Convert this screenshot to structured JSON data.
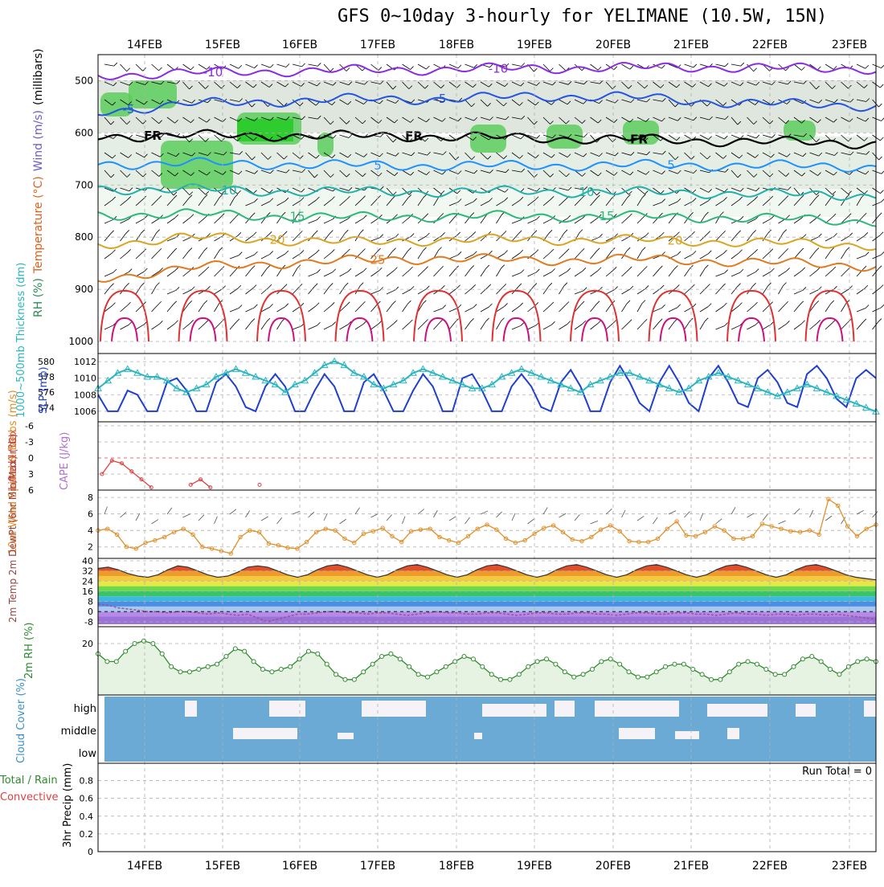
{
  "title": "GFS 0~10day 3-hourly for YELIMANE (10.5W, 15N)",
  "dates": [
    "14FEB",
    "15FEB",
    "16FEB",
    "17FEB",
    "18FEB",
    "19FEB",
    "20FEB",
    "21FEB",
    "22FEB",
    "23FEB"
  ],
  "colors": {
    "grid": "#b0b0b0",
    "axis": "#000000"
  },
  "chart_data": [
    {
      "type": "heatmap",
      "title": "Temperature / Wind / RH profile",
      "ylabel_parts": [
        "RH (%)",
        "Temperature (°C)",
        "Wind (m/s)",
        "(millibars)"
      ],
      "ylabel_colors": [
        "#2e8b57",
        "#e0601a",
        "#6a5acd",
        "#000000"
      ],
      "y_ticks": [
        500,
        600,
        700,
        800,
        900,
        1000
      ],
      "ylim": [
        450,
        1000
      ],
      "temperature_contours": [
        {
          "label": "-10",
          "color": "#8a2be2",
          "levels": [
            490,
            485,
            482,
            480,
            478,
            476,
            475,
            474,
            476,
            477
          ]
        },
        {
          "label": "-5",
          "color": "#2455e0",
          "levels": [
            560,
            545,
            540,
            535,
            535,
            530,
            530,
            540,
            545,
            548
          ]
        },
        {
          "label": "FR",
          "color": "#000000",
          "levels": [
            607,
            605,
            605,
            606,
            607,
            610,
            612,
            615,
            618,
            620
          ]
        },
        {
          "label": "5",
          "color": "#1e90ff",
          "levels": [
            660,
            658,
            660,
            662,
            663,
            663,
            662,
            662,
            663,
            665
          ]
        },
        {
          "label": "10",
          "color": "#20b2aa",
          "levels": [
            708,
            708,
            712,
            713,
            713,
            712,
            714,
            715,
            718,
            720
          ]
        },
        {
          "label": "15",
          "color": "#2db87a",
          "levels": [
            758,
            755,
            760,
            762,
            760,
            760,
            760,
            762,
            765,
            770
          ]
        },
        {
          "label": "20",
          "color": "#daa520",
          "levels": [
            815,
            800,
            805,
            810,
            805,
            805,
            805,
            808,
            812,
            815
          ]
        },
        {
          "label": "25",
          "color": "#e07b20",
          "levels": [
            880,
            860,
            850,
            845,
            840,
            845,
            842,
            845,
            850,
            855
          ]
        }
      ],
      "contour_labels": [
        "-10",
        "-5",
        "FR",
        "5",
        "10",
        "15",
        "20",
        "25"
      ]
    },
    {
      "type": "line",
      "title": "1000~500mb Thickness / SLP",
      "ylabel_left": "1000~500mb Thickness (dm)",
      "ylabel_right": "SLP (mb)",
      "left_ticks": [
        574,
        576,
        578,
        580
      ],
      "right_ticks": [
        1006,
        1008,
        1010,
        1012
      ],
      "series": [
        {
          "name": "SLP",
          "color": "#1f3fcf",
          "values": [
            1008.0,
            1006.0,
            1006.0,
            1008.5,
            1008.0,
            1006.0,
            1006.0,
            1009.5,
            1010.0,
            1008.5,
            1006.0,
            1006.0,
            1009.5,
            1010.5,
            1009.0,
            1006.5,
            1006.0,
            1009.0,
            1010.5,
            1009.0,
            1006.0,
            1006.0,
            1008.5,
            1010.5,
            1009.0,
            1006.0,
            1006.0,
            1009.5,
            1010.5,
            1008.5,
            1006.0,
            1006.0,
            1008.5,
            1010.5,
            1009.0,
            1006.0,
            1006.0,
            1010.0,
            1010.5,
            1008.5,
            1006.0,
            1006.0,
            1009.0,
            1010.5,
            1009.0,
            1006.5,
            1006.0,
            1009.5,
            1011.0,
            1009.0,
            1006.0,
            1006.0,
            1009.5,
            1011.5,
            1009.5,
            1007.0,
            1006.0,
            1009.5,
            1011.5,
            1009.5,
            1007.0,
            1006.0,
            1010.0,
            1011.5,
            1009.5,
            1007.0,
            1006.5,
            1010.0,
            1011.0,
            1009.5,
            1007.0,
            1006.5,
            1010.5,
            1011.5,
            1010.0,
            1007.5,
            1006.5,
            1010.0,
            1011.0,
            1010.0
          ]
        },
        {
          "name": "1000-500mb Thickness",
          "color": "#2bb5c0",
          "values": [
            576.5,
            577.5,
            578.5,
            579.0,
            578.5,
            578.0,
            578.0,
            577.5,
            576.5,
            576.0,
            576.5,
            577.0,
            578.0,
            578.5,
            579.0,
            578.5,
            578.0,
            577.5,
            577.0,
            576.0,
            577.0,
            577.5,
            578.5,
            579.5,
            580.0,
            579.5,
            578.5,
            578.0,
            577.0,
            576.5,
            577.0,
            577.5,
            578.5,
            579.0,
            578.5,
            578.0,
            577.5,
            577.0,
            576.5,
            576.5,
            577.0,
            578.0,
            578.5,
            579.0,
            578.5,
            578.0,
            577.5,
            577.0,
            576.5,
            576.0,
            577.0,
            577.5,
            578.0,
            578.5,
            578.5,
            578.0,
            577.5,
            577.0,
            576.5,
            576.0,
            576.5,
            577.5,
            578.0,
            578.5,
            578.0,
            577.5,
            577.0,
            576.5,
            576.0,
            575.5,
            576.0,
            576.5,
            577.0,
            576.5,
            576.0,
            575.5,
            575.0,
            574.5,
            574.0,
            573.5
          ]
        }
      ]
    },
    {
      "type": "line",
      "title": "Lifted Index / CAPE",
      "ylabel_left": "Lifted Index",
      "ylabel_right": "CAPE (J/kg)",
      "y_ticks": [
        -6,
        -3,
        0,
        3,
        6
      ],
      "ylim": [
        -6,
        6
      ],
      "series": [
        {
          "name": "Lifted Index",
          "color": "#e04040",
          "values": [
            3.0,
            0.5,
            1.0,
            2.5,
            4.0,
            5.5,
            null,
            null,
            null,
            5.0,
            4.0,
            5.5,
            null,
            null,
            null,
            null,
            5.0,
            null,
            null,
            null,
            null,
            null,
            null,
            null,
            null,
            null,
            null,
            null,
            null,
            null,
            null,
            null,
            null,
            null,
            null,
            null,
            null,
            null,
            null,
            null,
            null,
            null,
            null,
            null,
            null,
            null,
            null,
            null,
            null,
            null,
            null,
            null,
            null,
            null,
            null,
            null,
            null,
            null,
            null,
            null,
            null,
            null,
            null,
            null,
            null,
            null,
            null,
            null,
            null,
            null,
            null,
            null,
            null,
            null,
            null,
            null,
            null,
            null,
            null,
            null
          ]
        }
      ]
    },
    {
      "type": "line",
      "title": "10m Wind Speed & Barbs",
      "ylabel": "10m Wind Speed & Barbs (m/s)",
      "y_ticks": [
        2,
        4,
        6,
        8
      ],
      "ylim": [
        1,
        8.5
      ],
      "series": [
        {
          "name": "10m Wind Speed",
          "color": "#e0902a",
          "values": [
            4.0,
            4.2,
            3.5,
            2.0,
            1.8,
            2.5,
            2.8,
            3.2,
            3.8,
            4.2,
            3.5,
            2.0,
            1.8,
            1.5,
            1.2,
            3.2,
            4.0,
            3.8,
            2.4,
            2.2,
            1.9,
            1.8,
            2.6,
            3.8,
            4.2,
            4.0,
            3.0,
            2.5,
            3.6,
            3.9,
            4.3,
            3.3,
            2.6,
            3.9,
            4.1,
            4.2,
            3.2,
            2.8,
            2.5,
            3.3,
            4.2,
            4.7,
            4.1,
            3.0,
            2.5,
            2.8,
            3.6,
            4.3,
            4.6,
            3.8,
            2.9,
            2.7,
            3.2,
            4.1,
            4.6,
            3.9,
            2.7,
            2.6,
            2.6,
            3.0,
            4.2,
            5.1,
            3.4,
            3.3,
            3.8,
            4.5,
            4.0,
            3.0,
            3.0,
            3.3,
            4.8,
            4.5,
            4.2,
            3.9,
            3.8,
            4.0,
            3.5,
            7.8,
            7.0,
            4.5,
            3.3,
            4.2,
            4.7
          ]
        }
      ]
    },
    {
      "type": "area",
      "title": "2m Temp / 2m DewPt",
      "ylabel": "2m Temp 2m DewPt (6hr Min/Max) (°C)",
      "y_ticks": [
        -8,
        0,
        8,
        16,
        24,
        32,
        40
      ],
      "ylim": [
        -10,
        40
      ],
      "series": [
        {
          "name": "2m Temp",
          "color": "#8b1a1a",
          "values": [
            34,
            35,
            33,
            30,
            28,
            27,
            29,
            33,
            36,
            35,
            32,
            29,
            27,
            28,
            31,
            35,
            36,
            35,
            32,
            29,
            27,
            29,
            33,
            36,
            37,
            35,
            32,
            29,
            27,
            29,
            33,
            36,
            37,
            35,
            32,
            29,
            27,
            29,
            33,
            36,
            37,
            35,
            32,
            29,
            27,
            29,
            33,
            36,
            37,
            35,
            32,
            29,
            27,
            29,
            33,
            36,
            37,
            35,
            32,
            29,
            27,
            29,
            33,
            36,
            37,
            35,
            32,
            29,
            27,
            29,
            33,
            36,
            37,
            35,
            32,
            29,
            27,
            26,
            25
          ]
        },
        {
          "name": "2m DewPt",
          "color": "#a0509a",
          "values": [
            6,
            5,
            3,
            2,
            1,
            0,
            0,
            -1,
            0,
            0,
            -1,
            -2,
            -1,
            -2,
            -3,
            -2,
            -5,
            -8,
            -6,
            -4,
            -2,
            -2,
            -1,
            0,
            0,
            -1,
            -1,
            -2,
            -1,
            -1,
            -2,
            -3,
            -2,
            -1,
            0,
            -1,
            -1,
            -2,
            -2,
            -1,
            -1,
            -2,
            -3,
            -2,
            -1,
            -1,
            -2,
            -2,
            -1,
            -1,
            -2,
            -2,
            -3,
            -2,
            -1,
            -1,
            -2,
            -2,
            -1,
            -1,
            -2,
            -2,
            -3,
            -2,
            -1,
            -2,
            -2,
            -3,
            -2,
            -2,
            -3,
            -2,
            -2,
            -3,
            -2,
            -3,
            -4,
            -5,
            -6
          ]
        }
      ]
    },
    {
      "type": "area",
      "title": "2m RH",
      "ylabel": "2m RH (%)",
      "y_ticks": [
        20
      ],
      "ylim": [
        0,
        25
      ],
      "series": [
        {
          "name": "2m RH",
          "color": "#2e8b2e",
          "values": [
            16,
            13,
            13,
            17,
            20,
            21,
            20,
            16,
            11,
            9,
            9,
            10,
            11,
            12,
            15,
            18,
            17,
            13,
            10,
            9,
            10,
            11,
            14,
            17,
            16,
            12,
            8,
            6,
            6,
            9,
            12,
            15,
            16,
            14,
            11,
            8,
            7,
            9,
            11,
            13,
            15,
            14,
            11,
            8,
            6,
            6,
            8,
            11,
            13,
            14,
            12,
            9,
            7,
            8,
            10,
            13,
            14,
            12,
            9,
            7,
            7,
            9,
            11,
            12,
            12,
            10,
            8,
            6,
            6,
            9,
            12,
            13,
            12,
            10,
            8,
            8,
            11,
            14,
            15,
            13,
            10,
            8,
            11,
            13,
            14,
            13
          ]
        }
      ]
    },
    {
      "type": "heatmap",
      "title": "Cloud Cover",
      "ylabel": "Cloud Cover (%)",
      "levels": [
        "high",
        "middle",
        "low"
      ],
      "colors": {
        "cloud": "#6aaad4",
        "clear": "#f5f2f8"
      }
    },
    {
      "type": "bar",
      "title": "3hr Precip",
      "ylabel": "3hr Precip (mm)",
      "ylabel_left": "Total / Rain",
      "ylabel_left2": "Convective",
      "y_ticks": [
        0,
        0.2,
        0.4,
        0.6,
        0.8
      ],
      "ylim": [
        0,
        0.95
      ],
      "run_total": "Run Total = 0",
      "values": []
    }
  ]
}
